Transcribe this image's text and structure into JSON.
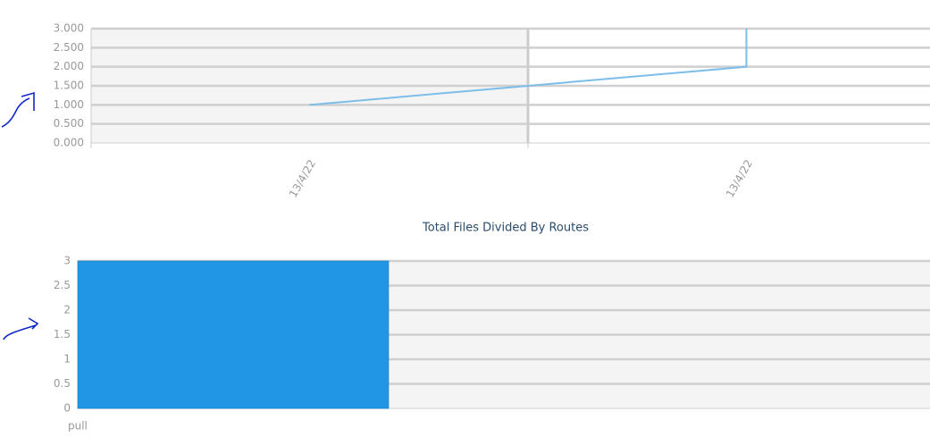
{
  "chart_data": [
    {
      "type": "line",
      "categories": [
        "13/4/22",
        "13/4/22",
        null
      ],
      "series": [
        {
          "color": "#7cbde9",
          "values": [
            1,
            2,
            3
          ]
        }
      ],
      "ylim": [
        0,
        3
      ],
      "yticks": [
        {
          "value": 0,
          "label": "0.000"
        },
        {
          "value": 0.5,
          "label": "0.500"
        },
        {
          "value": 1,
          "label": "1.000"
        },
        {
          "value": 1.5,
          "label": "1.500"
        },
        {
          "value": 2,
          "label": "2.000"
        },
        {
          "value": 2.5,
          "label": "2.500"
        },
        {
          "value": 3,
          "label": "3.000"
        }
      ],
      "grid": true
    },
    {
      "type": "bar",
      "title": "Total Files Divided By Routes",
      "categories": [
        "pull"
      ],
      "values": [
        3
      ],
      "color": "#2196e3",
      "ylim": [
        0,
        3
      ],
      "yticks": [
        0,
        0.5,
        1,
        1.5,
        2,
        2.5,
        3
      ],
      "grid": true
    }
  ]
}
